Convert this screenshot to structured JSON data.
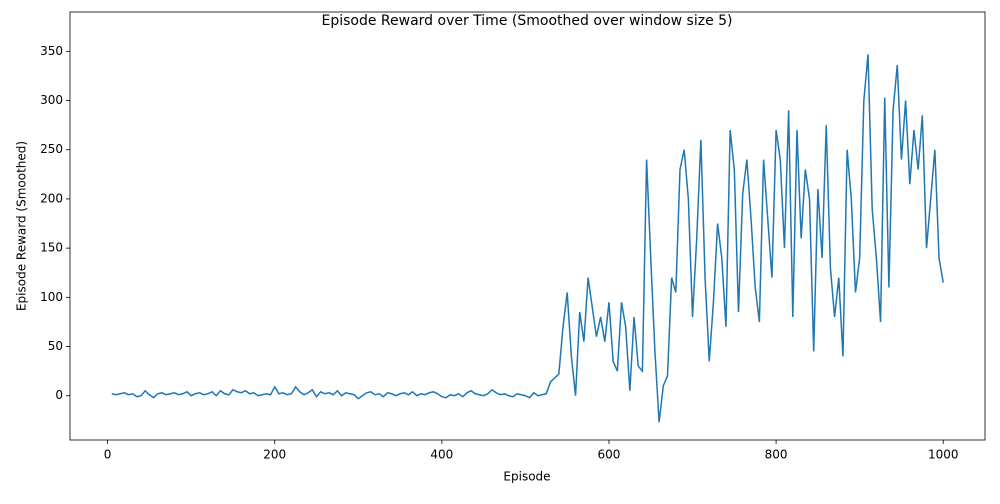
{
  "chart_data": {
    "type": "line",
    "title": "Episode Reward over Time (Smoothed over window size 5)",
    "xlabel": "Episode",
    "ylabel": "Episode Reward (Smoothed)",
    "color": "#1f77b4",
    "x": [
      5,
      10,
      15,
      20,
      25,
      30,
      35,
      40,
      45,
      50,
      55,
      60,
      65,
      70,
      75,
      80,
      85,
      90,
      95,
      100,
      105,
      110,
      115,
      120,
      125,
      130,
      135,
      140,
      145,
      150,
      155,
      160,
      165,
      170,
      175,
      180,
      185,
      190,
      195,
      200,
      205,
      210,
      215,
      220,
      225,
      230,
      235,
      240,
      245,
      250,
      255,
      260,
      265,
      270,
      275,
      280,
      285,
      290,
      295,
      300,
      305,
      310,
      315,
      320,
      325,
      330,
      335,
      340,
      345,
      350,
      355,
      360,
      365,
      370,
      375,
      380,
      385,
      390,
      395,
      400,
      405,
      410,
      415,
      420,
      425,
      430,
      435,
      440,
      445,
      450,
      455,
      460,
      465,
      470,
      475,
      480,
      485,
      490,
      495,
      500,
      505,
      510,
      515,
      520,
      525,
      530,
      535,
      540,
      545,
      550,
      555,
      560,
      565,
      570,
      575,
      580,
      585,
      590,
      595,
      600,
      605,
      610,
      615,
      620,
      625,
      630,
      635,
      640,
      645,
      650,
      655,
      660,
      665,
      670,
      675,
      680,
      685,
      690,
      695,
      700,
      705,
      710,
      715,
      720,
      725,
      730,
      735,
      740,
      745,
      750,
      755,
      760,
      765,
      770,
      775,
      780,
      785,
      790,
      795,
      800,
      805,
      810,
      815,
      820,
      825,
      830,
      835,
      840,
      845,
      850,
      855,
      860,
      865,
      870,
      875,
      880,
      885,
      890,
      895,
      900,
      905,
      910,
      915,
      920,
      925,
      930,
      935,
      940,
      945,
      950,
      955,
      960,
      965,
      970,
      975,
      980,
      985,
      990,
      995,
      1000
    ],
    "values": [
      2,
      1,
      2,
      3,
      1,
      2,
      -1,
      0,
      5,
      1,
      -2,
      2,
      3,
      1,
      2,
      3,
      1,
      2,
      4,
      0,
      2,
      3,
      1,
      2,
      4,
      0,
      5,
      2,
      1,
      6,
      4,
      3,
      5,
      2,
      3,
      0,
      1,
      2,
      1,
      9,
      2,
      3,
      1,
      2,
      9,
      4,
      1,
      3,
      6,
      -1,
      4,
      2,
      3,
      1,
      5,
      0,
      3,
      2,
      1,
      -3,
      0,
      3,
      4,
      1,
      2,
      -1,
      3,
      2,
      0,
      2,
      3,
      1,
      4,
      0,
      2,
      1,
      3,
      4,
      2,
      -1,
      -2,
      1,
      0,
      2,
      -1,
      3,
      5,
      2,
      1,
      0,
      2,
      6,
      3,
      1,
      2,
      0,
      -1,
      2,
      1,
      0,
      -2,
      3,
      0,
      1,
      2,
      14,
      18,
      22,
      70,
      105,
      40,
      0,
      85,
      55,
      120,
      90,
      60,
      80,
      55,
      95,
      35,
      25,
      95,
      70,
      5,
      80,
      30,
      25,
      240,
      140,
      45,
      -27,
      10,
      20,
      120,
      105,
      230,
      250,
      200,
      80,
      160,
      260,
      120,
      35,
      95,
      175,
      140,
      70,
      270,
      230,
      85,
      205,
      240,
      180,
      110,
      75,
      240,
      180,
      120,
      270,
      240,
      150,
      290,
      80,
      270,
      160,
      230,
      200,
      45,
      210,
      140,
      275,
      130,
      80,
      120,
      40,
      250,
      200,
      105,
      140,
      300,
      347,
      190,
      140,
      75,
      303,
      110,
      290,
      336,
      240,
      300,
      215,
      270,
      230,
      285,
      150,
      200,
      250,
      140,
      115
    ],
    "xlim": [
      -45,
      1050
    ],
    "ylim": [
      -45,
      390
    ],
    "xticks": [
      0,
      200,
      400,
      600,
      800,
      1000
    ],
    "yticks": [
      0,
      50,
      100,
      150,
      200,
      250,
      300,
      350
    ]
  }
}
